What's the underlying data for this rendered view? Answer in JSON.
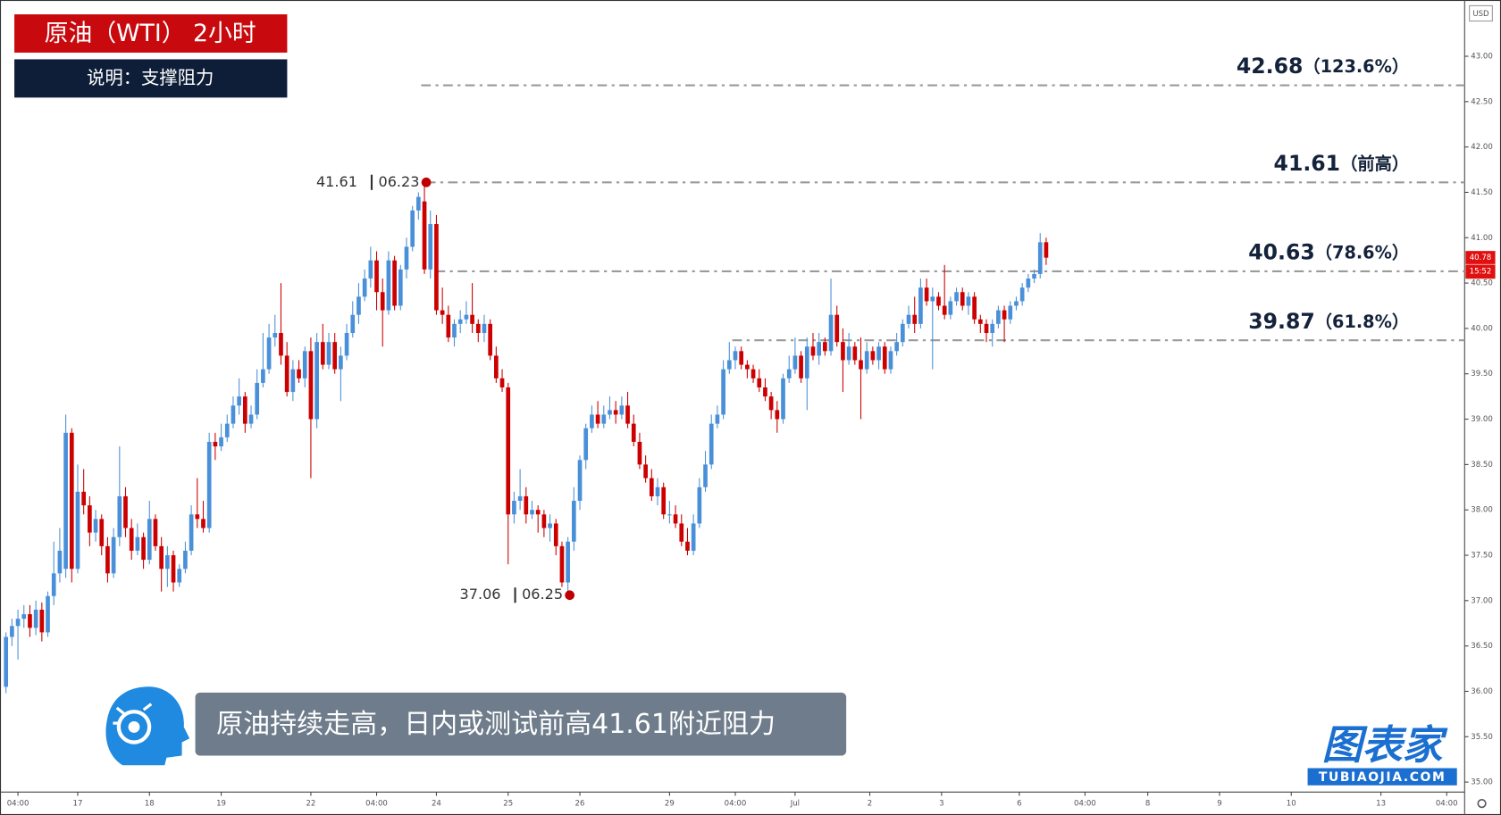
{
  "header": {
    "title": "原油（WTI） 2小时",
    "subtitle": "说明：支撑阻力"
  },
  "chart_data": {
    "type": "candlestick",
    "currency": "USD",
    "up_color": "#4a90d9",
    "down_color": "#cc0000",
    "xlim": [
      0,
      245
    ],
    "ylim": [
      34.89,
      43.62
    ],
    "yticks": [
      {
        "value": 35,
        "label": "35.00"
      },
      {
        "value": 35.5,
        "label": "35.50"
      },
      {
        "value": 36,
        "label": "36.00"
      },
      {
        "value": 36.5,
        "label": "36.50"
      },
      {
        "value": 37,
        "label": "37.00"
      },
      {
        "value": 37.5,
        "label": "37.50"
      },
      {
        "value": 38,
        "label": "38.00"
      },
      {
        "value": 38.5,
        "label": "38.50"
      },
      {
        "value": 39,
        "label": "39.00"
      },
      {
        "value": 39.5,
        "label": "39.50"
      },
      {
        "value": 40,
        "label": "40.00"
      },
      {
        "value": 40.5,
        "label": "40.50"
      },
      {
        "value": 41,
        "label": "41.00"
      },
      {
        "value": 41.5,
        "label": "41.50"
      },
      {
        "value": 42,
        "label": "42.00"
      },
      {
        "value": 42.5,
        "label": "42.50"
      },
      {
        "value": 43,
        "label": "43.00"
      }
    ],
    "xticks": [
      {
        "value": 3,
        "label": "04:00"
      },
      {
        "value": 13,
        "label": "17"
      },
      {
        "value": 25,
        "label": "18"
      },
      {
        "value": 37,
        "label": "19"
      },
      {
        "value": 52,
        "label": "22"
      },
      {
        "value": 63,
        "label": "04:00"
      },
      {
        "value": 73,
        "label": "24"
      },
      {
        "value": 85,
        "label": "25"
      },
      {
        "value": 97,
        "label": "26"
      },
      {
        "value": 112,
        "label": "29"
      },
      {
        "value": 123,
        "label": "04:00"
      },
      {
        "value": 133,
        "label": "Jul"
      },
      {
        "value": 145.5,
        "label": "2"
      },
      {
        "value": 157.5,
        "label": "3"
      },
      {
        "value": 170.5,
        "label": "6"
      },
      {
        "value": 181.5,
        "label": "04:00"
      },
      {
        "value": 192,
        "label": "8"
      },
      {
        "value": 204,
        "label": "9"
      },
      {
        "value": 216,
        "label": "10"
      },
      {
        "value": 231,
        "label": "13"
      },
      {
        "value": 242,
        "label": "04:00"
      }
    ],
    "x": [
      1,
      2,
      3,
      4,
      5,
      6,
      7,
      8,
      9,
      10,
      11,
      12,
      13,
      14,
      15,
      16,
      17,
      18,
      19,
      20,
      21,
      22,
      23,
      24,
      25,
      26,
      27,
      28,
      29,
      30,
      31,
      32,
      33,
      34,
      35,
      36,
      37,
      38,
      39,
      40,
      41,
      42,
      43,
      44,
      45,
      46,
      47,
      48,
      49,
      50,
      51,
      52,
      53,
      54,
      55,
      56,
      57,
      58,
      59,
      60,
      61,
      62,
      63,
      64,
      65,
      66,
      67,
      68,
      69,
      70,
      71,
      72,
      73,
      74,
      75,
      76,
      77,
      78,
      79,
      80,
      81,
      82,
      83,
      84,
      85,
      86,
      87,
      88,
      89,
      90,
      91,
      92,
      93,
      94,
      95,
      96,
      97,
      98,
      99,
      100,
      101,
      102,
      103,
      104,
      105,
      106,
      107,
      108,
      109,
      110,
      111,
      112,
      113,
      114,
      115,
      116,
      117,
      118,
      119,
      120,
      121,
      122,
      123,
      124,
      125,
      126,
      127,
      128,
      129,
      130,
      131,
      132,
      133,
      134,
      135,
      136,
      137,
      138,
      139,
      140,
      141,
      142,
      143,
      144,
      145,
      146,
      147,
      148,
      149,
      150,
      151,
      152,
      153,
      154,
      155,
      156,
      157,
      158,
      159,
      160,
      161,
      162,
      163,
      164,
      165,
      166,
      167,
      168,
      169,
      170,
      171,
      172,
      173,
      174,
      175
    ],
    "candles": [
      [
        36.05,
        36.65,
        35.98,
        36.6
      ],
      [
        36.6,
        36.8,
        36.5,
        36.72
      ],
      [
        36.72,
        36.9,
        36.35,
        36.8
      ],
      [
        36.8,
        36.95,
        36.7,
        36.85
      ],
      [
        36.85,
        36.95,
        36.6,
        36.7
      ],
      [
        36.7,
        37.0,
        36.62,
        36.9
      ],
      [
        36.9,
        36.98,
        36.55,
        36.65
      ],
      [
        36.65,
        37.1,
        36.6,
        37.05
      ],
      [
        37.05,
        37.65,
        36.95,
        37.3
      ],
      [
        37.3,
        37.8,
        37.2,
        37.55
      ],
      [
        37.35,
        39.05,
        37.25,
        38.85
      ],
      [
        38.85,
        38.9,
        37.2,
        37.35
      ],
      [
        37.35,
        38.5,
        37.3,
        38.2
      ],
      [
        38.2,
        38.45,
        37.95,
        38.05
      ],
      [
        38.05,
        38.15,
        37.6,
        37.75
      ],
      [
        37.75,
        38.0,
        37.65,
        37.9
      ],
      [
        37.9,
        37.95,
        37.5,
        37.6
      ],
      [
        37.6,
        37.7,
        37.2,
        37.3
      ],
      [
        37.3,
        37.8,
        37.25,
        37.7
      ],
      [
        37.7,
        38.7,
        37.6,
        38.15
      ],
      [
        38.15,
        38.25,
        37.7,
        37.8
      ],
      [
        37.8,
        37.9,
        37.45,
        37.55
      ],
      [
        37.55,
        37.85,
        37.5,
        37.7
      ],
      [
        37.7,
        37.75,
        37.35,
        37.45
      ],
      [
        37.45,
        38.1,
        37.4,
        37.9
      ],
      [
        37.9,
        37.95,
        37.55,
        37.6
      ],
      [
        37.6,
        37.7,
        37.1,
        37.35
      ],
      [
        37.35,
        37.6,
        37.15,
        37.5
      ],
      [
        37.5,
        37.55,
        37.1,
        37.2
      ],
      [
        37.2,
        37.4,
        37.15,
        37.35
      ],
      [
        37.35,
        37.65,
        37.3,
        37.55
      ],
      [
        37.55,
        38.05,
        37.5,
        37.95
      ],
      [
        37.95,
        38.35,
        37.8,
        37.9
      ],
      [
        37.9,
        38.1,
        37.75,
        37.8
      ],
      [
        37.8,
        38.85,
        37.75,
        38.75
      ],
      [
        38.75,
        38.85,
        38.55,
        38.7
      ],
      [
        38.7,
        38.95,
        38.65,
        38.8
      ],
      [
        38.8,
        39.05,
        38.75,
        38.95
      ],
      [
        38.95,
        39.25,
        38.9,
        39.15
      ],
      [
        39.15,
        39.45,
        39.05,
        39.25
      ],
      [
        39.25,
        39.3,
        38.85,
        38.95
      ],
      [
        38.95,
        39.15,
        38.9,
        39.05
      ],
      [
        39.05,
        39.55,
        39.0,
        39.4
      ],
      [
        39.4,
        39.95,
        39.35,
        39.55
      ],
      [
        39.55,
        40.05,
        39.5,
        39.9
      ],
      [
        39.9,
        40.15,
        39.8,
        39.95
      ],
      [
        39.95,
        40.5,
        39.6,
        39.7
      ],
      [
        39.7,
        39.85,
        39.25,
        39.3
      ],
      [
        39.3,
        39.65,
        39.2,
        39.55
      ],
      [
        39.55,
        39.65,
        39.4,
        39.45
      ],
      [
        39.45,
        39.8,
        39.35,
        39.75
      ],
      [
        39.75,
        39.9,
        38.35,
        39.0
      ],
      [
        39.0,
        39.95,
        38.9,
        39.85
      ],
      [
        39.85,
        40.05,
        39.55,
        39.6
      ],
      [
        39.6,
        39.95,
        39.55,
        39.85
      ],
      [
        39.85,
        39.95,
        39.5,
        39.55
      ],
      [
        39.55,
        39.8,
        39.2,
        39.7
      ],
      [
        39.7,
        40.05,
        39.65,
        39.95
      ],
      [
        39.95,
        40.3,
        39.9,
        40.15
      ],
      [
        40.15,
        40.5,
        40.05,
        40.35
      ],
      [
        40.35,
        40.65,
        40.3,
        40.55
      ],
      [
        40.55,
        40.9,
        40.45,
        40.75
      ],
      [
        40.75,
        40.85,
        40.2,
        40.4
      ],
      [
        40.4,
        40.55,
        39.8,
        40.2
      ],
      [
        40.2,
        40.85,
        40.15,
        40.75
      ],
      [
        40.75,
        40.8,
        40.2,
        40.25
      ],
      [
        40.25,
        40.7,
        40.2,
        40.65
      ],
      [
        40.65,
        41.0,
        40.55,
        40.9
      ],
      [
        40.9,
        41.35,
        40.85,
        41.3
      ],
      [
        41.3,
        41.5,
        41.2,
        41.45
      ],
      [
        41.4,
        41.61,
        40.6,
        40.65
      ],
      [
        40.65,
        41.3,
        40.55,
        41.15
      ],
      [
        41.15,
        41.25,
        40.15,
        40.2
      ],
      [
        40.2,
        40.45,
        40.05,
        40.15
      ],
      [
        40.15,
        40.25,
        39.85,
        39.9
      ],
      [
        39.9,
        40.1,
        39.8,
        40.05
      ],
      [
        40.05,
        40.2,
        39.95,
        40.1
      ],
      [
        40.1,
        40.3,
        40.05,
        40.15
      ],
      [
        40.15,
        40.5,
        39.95,
        40.05
      ],
      [
        40.05,
        40.1,
        39.85,
        39.95
      ],
      [
        39.95,
        40.15,
        39.85,
        40.05
      ],
      [
        40.05,
        40.1,
        39.65,
        39.7
      ],
      [
        39.7,
        39.8,
        39.4,
        39.45
      ],
      [
        39.45,
        39.55,
        39.3,
        39.35
      ],
      [
        39.35,
        39.4,
        37.4,
        37.95
      ],
      [
        37.95,
        38.2,
        37.85,
        38.1
      ],
      [
        38.1,
        38.45,
        38.0,
        38.15
      ],
      [
        38.15,
        38.25,
        37.85,
        37.95
      ],
      [
        37.95,
        38.1,
        37.9,
        38.0
      ],
      [
        38.0,
        38.05,
        37.75,
        37.95
      ],
      [
        37.95,
        38.0,
        37.7,
        37.8
      ],
      [
        37.8,
        37.95,
        37.65,
        37.85
      ],
      [
        37.85,
        37.9,
        37.5,
        37.6
      ],
      [
        37.6,
        37.65,
        37.15,
        37.2
      ],
      [
        37.2,
        37.7,
        37.06,
        37.65
      ],
      [
        37.65,
        38.25,
        37.55,
        38.1
      ],
      [
        38.1,
        38.6,
        38.0,
        38.55
      ],
      [
        38.55,
        38.95,
        38.45,
        38.9
      ],
      [
        38.9,
        39.15,
        38.85,
        39.05
      ],
      [
        39.05,
        39.2,
        38.9,
        38.95
      ],
      [
        38.95,
        39.15,
        38.9,
        39.05
      ],
      [
        39.05,
        39.25,
        39.0,
        39.1
      ],
      [
        39.1,
        39.2,
        38.95,
        39.05
      ],
      [
        39.05,
        39.25,
        39.0,
        39.15
      ],
      [
        39.15,
        39.3,
        38.9,
        38.95
      ],
      [
        38.95,
        39.05,
        38.7,
        38.75
      ],
      [
        38.75,
        38.85,
        38.45,
        38.5
      ],
      [
        38.5,
        38.6,
        38.3,
        38.35
      ],
      [
        38.35,
        38.45,
        38.1,
        38.15
      ],
      [
        38.15,
        38.35,
        38.05,
        38.25
      ],
      [
        38.25,
        38.3,
        37.9,
        37.95
      ],
      [
        37.95,
        38.1,
        37.85,
        37.95
      ],
      [
        37.95,
        38.05,
        37.8,
        37.85
      ],
      [
        37.85,
        37.95,
        37.6,
        37.65
      ],
      [
        37.65,
        37.8,
        37.5,
        37.55
      ],
      [
        37.55,
        37.95,
        37.5,
        37.85
      ],
      [
        37.85,
        38.35,
        37.8,
        38.25
      ],
      [
        38.25,
        38.65,
        38.2,
        38.5
      ],
      [
        38.5,
        39.05,
        38.45,
        38.95
      ],
      [
        38.95,
        39.15,
        38.9,
        39.05
      ],
      [
        39.05,
        39.65,
        39.0,
        39.55
      ],
      [
        39.55,
        39.85,
        39.5,
        39.65
      ],
      [
        39.65,
        39.8,
        39.55,
        39.75
      ],
      [
        39.75,
        39.8,
        39.55,
        39.6
      ],
      [
        39.6,
        39.65,
        39.45,
        39.55
      ],
      [
        39.55,
        39.6,
        39.4,
        39.45
      ],
      [
        39.45,
        39.55,
        39.3,
        39.35
      ],
      [
        39.35,
        39.45,
        39.2,
        39.25
      ],
      [
        39.25,
        39.3,
        39.0,
        39.1
      ],
      [
        39.1,
        39.2,
        38.85,
        39.0
      ],
      [
        39.0,
        39.5,
        38.95,
        39.45
      ],
      [
        39.45,
        39.7,
        39.4,
        39.55
      ],
      [
        39.55,
        39.9,
        39.5,
        39.7
      ],
      [
        39.7,
        39.75,
        39.4,
        39.45
      ],
      [
        39.45,
        39.9,
        39.1,
        39.8
      ],
      [
        39.8,
        39.95,
        39.65,
        39.7
      ],
      [
        39.7,
        39.95,
        39.6,
        39.85
      ],
      [
        39.85,
        39.9,
        39.7,
        39.75
      ],
      [
        39.75,
        40.55,
        39.7,
        40.15
      ],
      [
        40.15,
        40.25,
        39.8,
        39.85
      ],
      [
        39.85,
        40.0,
        39.3,
        39.65
      ],
      [
        39.65,
        39.95,
        39.6,
        39.8
      ],
      [
        39.8,
        39.85,
        39.6,
        39.65
      ],
      [
        39.65,
        39.9,
        39.0,
        39.55
      ],
      [
        39.55,
        39.85,
        39.5,
        39.75
      ],
      [
        39.75,
        39.8,
        39.6,
        39.65
      ],
      [
        39.65,
        39.85,
        39.55,
        39.8
      ],
      [
        39.8,
        39.85,
        39.5,
        39.55
      ],
      [
        39.55,
        39.8,
        39.5,
        39.75
      ],
      [
        39.75,
        39.95,
        39.7,
        39.85
      ],
      [
        39.85,
        40.1,
        39.8,
        40.05
      ],
      [
        40.05,
        40.25,
        40.0,
        40.15
      ],
      [
        40.15,
        40.35,
        39.95,
        40.05
      ],
      [
        40.05,
        40.55,
        40.0,
        40.45
      ],
      [
        40.45,
        40.55,
        40.25,
        40.3
      ],
      [
        40.3,
        40.45,
        39.55,
        40.35
      ],
      [
        40.35,
        40.4,
        40.2,
        40.25
      ],
      [
        40.25,
        40.7,
        40.1,
        40.15
      ],
      [
        40.15,
        40.35,
        40.1,
        40.3
      ],
      [
        40.3,
        40.45,
        40.25,
        40.4
      ],
      [
        40.4,
        40.45,
        40.2,
        40.25
      ],
      [
        40.25,
        40.4,
        40.15,
        40.35
      ],
      [
        40.35,
        40.4,
        40.05,
        40.1
      ],
      [
        40.1,
        40.15,
        39.95,
        40.05
      ],
      [
        40.05,
        40.1,
        39.85,
        39.95
      ],
      [
        39.95,
        40.1,
        39.8,
        40.05
      ],
      [
        40.05,
        40.25,
        40.0,
        40.2
      ],
      [
        40.2,
        40.25,
        39.85,
        40.1
      ],
      [
        40.1,
        40.3,
        40.05,
        40.25
      ],
      [
        40.25,
        40.35,
        40.2,
        40.3
      ],
      [
        40.3,
        40.5,
        40.25,
        40.45
      ],
      [
        40.45,
        40.6,
        40.4,
        40.55
      ],
      [
        40.55,
        40.65,
        40.5,
        40.6
      ],
      [
        40.6,
        41.05,
        40.55,
        40.95
      ],
      [
        40.95,
        41.0,
        40.7,
        40.78
      ]
    ],
    "levels": [
      {
        "value": 42.68,
        "label": "（123.6%）"
      },
      {
        "value": 41.61,
        "label": "（前高）"
      },
      {
        "value": 40.63,
        "label": "（78.6%）"
      },
      {
        "value": 39.87,
        "label": "（61.8%）"
      }
    ],
    "annotations": [
      {
        "value": 41.61,
        "date": "06.23",
        "x": 71.3
      },
      {
        "value": 37.06,
        "date": "06.25",
        "x": 95.3
      }
    ],
    "last_price": {
      "value": 40.78,
      "time": "15:52"
    }
  },
  "caption": "原油持续走高，日内或测试前高41.61附近阻力",
  "logo": {
    "name": "图表家",
    "site": "TUBIAOJIA.COM"
  }
}
